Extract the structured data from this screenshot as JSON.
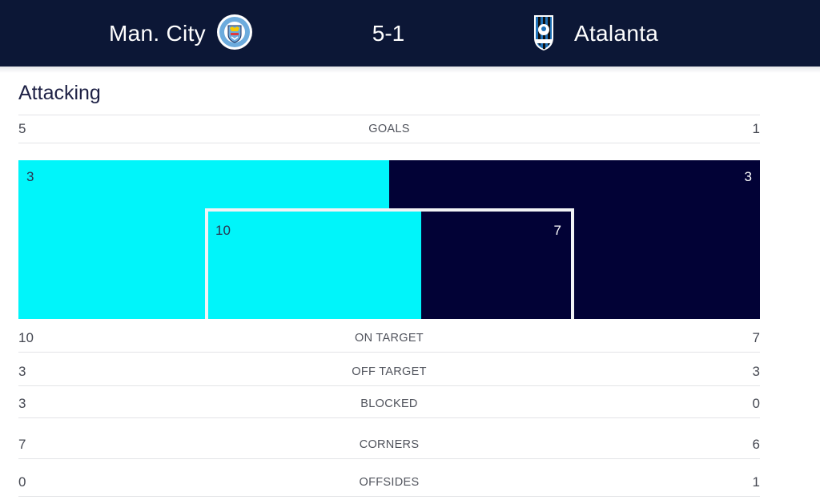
{
  "match": {
    "home_team": "Man. City",
    "away_team": "Atalanta",
    "score": "5-1",
    "home_crest_icon": "manchester-city-crest-icon",
    "away_crest_icon": "atalanta-crest-icon"
  },
  "section": {
    "title": "Attacking"
  },
  "colors": {
    "home": "#00f5fa",
    "away": "#020236",
    "header_bg": "#0c1736"
  },
  "chart_data": {
    "type": "table",
    "series": [
      {
        "name": "Man. City"
      },
      {
        "name": "Atalanta"
      }
    ],
    "stats": [
      {
        "key": "goals",
        "label": "GOALS",
        "home": "5",
        "away": "1"
      },
      {
        "key": "on_target",
        "label": "ON TARGET",
        "home": "10",
        "away": "7"
      },
      {
        "key": "off_target",
        "label": "OFF TARGET",
        "home": "3",
        "away": "3"
      },
      {
        "key": "blocked",
        "label": "BLOCKED",
        "home": "3",
        "away": "0"
      },
      {
        "key": "corners",
        "label": "CORNERS",
        "home": "7",
        "away": "6"
      },
      {
        "key": "offsides",
        "label": "OFFSIDES",
        "home": "0",
        "away": "1"
      }
    ],
    "shot_map": {
      "off_target": {
        "home": 3,
        "away": 3,
        "home_label": "3",
        "away_label": "3"
      },
      "on_target": {
        "home": 10,
        "away": 7,
        "home_label": "10",
        "away_label": "7"
      }
    }
  }
}
